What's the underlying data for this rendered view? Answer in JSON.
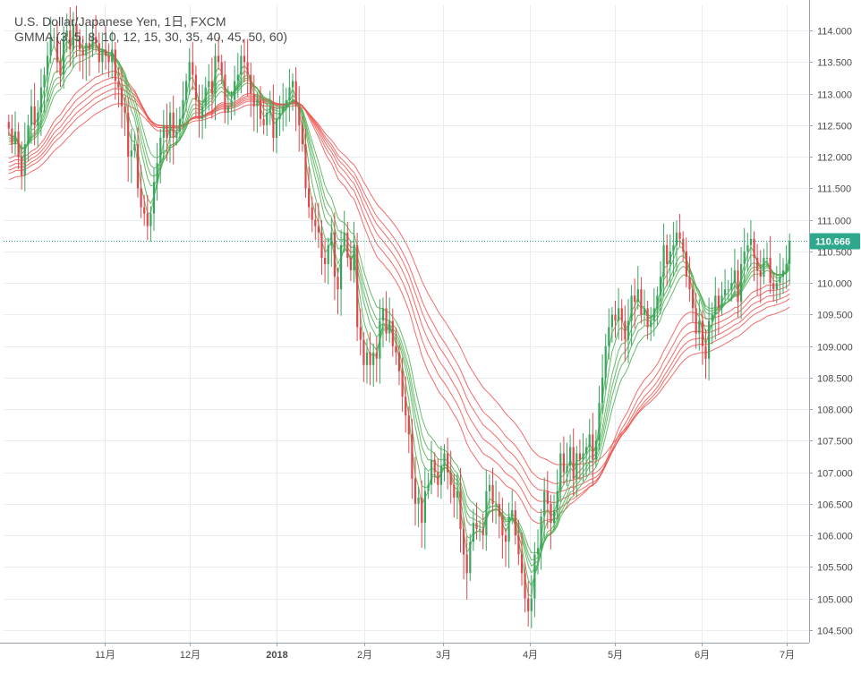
{
  "header": {
    "title": "U.S. Dollar/Japanese Yen, 1日, FXCM",
    "indicator": "GMMA (3, 5, 8, 10, 12, 15, 30, 35, 40, 45, 50, 60)"
  },
  "colors": {
    "up": "#3ba560",
    "down": "#e0474c",
    "short_ma": "#4caf50",
    "long_ma": "#ef5350",
    "grid": "#e9edf2",
    "axis": "#4a4a4a",
    "price_line": "#2a9d8f",
    "price_badge": "#2ea88c"
  },
  "chart_data": {
    "type": "candlestick",
    "title": "U.S. Dollar/Japanese Yen, 1日, FXCM",
    "indicator": "GMMA (3, 5, 8, 10, 12, 15, 30, 35, 40, 45, 50, 60)",
    "ylim": [
      104.3,
      114.4
    ],
    "y_ticks": [
      "104.500",
      "105.000",
      "105.500",
      "106.000",
      "106.500",
      "107.000",
      "107.500",
      "108.000",
      "108.500",
      "109.000",
      "109.500",
      "110.000",
      "110.500",
      "111.000",
      "111.500",
      "112.000",
      "112.500",
      "113.000",
      "113.500",
      "114.000"
    ],
    "x_ticks": [
      "11月",
      "12月",
      "2018",
      "2月",
      "3月",
      "4月",
      "5月",
      "6月",
      "7月"
    ],
    "last_price": "110.666",
    "grid": true,
    "x_range": [
      "2017-09-26",
      "2018-07-02"
    ],
    "closes": [
      112.45,
      112.2,
      112.4,
      112.0,
      111.7,
      112.2,
      112.5,
      112.8,
      112.5,
      112.7,
      113.1,
      113.3,
      113.6,
      113.9,
      113.9,
      113.5,
      113.3,
      113.9,
      114.0,
      113.7,
      114.1,
      113.9,
      113.7,
      113.6,
      113.8,
      113.7,
      113.9,
      113.8,
      113.5,
      113.7,
      113.6,
      113.5,
      113.7,
      113.2,
      113.1,
      112.8,
      112.7,
      112.0,
      112.1,
      112.2,
      111.5,
      111.2,
      111.1,
      110.9,
      111.1,
      111.6,
      111.9,
      112.3,
      112.5,
      112.3,
      112.7,
      112.3,
      112.4,
      112.6,
      112.9,
      113.2,
      113.5,
      113.3,
      112.9,
      112.6,
      112.8,
      113.1,
      113.2,
      113.0,
      113.6,
      113.5,
      113.3,
      112.7,
      112.8,
      112.9,
      113.2,
      113.3,
      113.6,
      113.5,
      113.3,
      113.0,
      112.8,
      112.9,
      112.6,
      112.5,
      112.7,
      112.8,
      112.3,
      112.6,
      112.7,
      112.8,
      112.9,
      113.1,
      113.2,
      112.8,
      112.5,
      112.2,
      111.5,
      111.2,
      111.0,
      110.9,
      110.8,
      110.4,
      110.3,
      110.6,
      110.8,
      110.1,
      109.9,
      110.6,
      110.8,
      110.4,
      110.2,
      110.6,
      109.3,
      109.1,
      108.7,
      108.9,
      108.7,
      108.9,
      108.8,
      109.4,
      109.6,
      109.2,
      109.4,
      109.0,
      108.9,
      108.6,
      108.2,
      107.9,
      107.6,
      106.9,
      106.5,
      106.6,
      106.2,
      106.7,
      106.8,
      107.2,
      107.0,
      106.8,
      107.1,
      107.3,
      107.0,
      106.8,
      106.6,
      106.7,
      106.1,
      105.7,
      105.4,
      105.9,
      106.2,
      106.1,
      106.1,
      106.0,
      106.7,
      106.8,
      106.5,
      106.5,
      106.3,
      106.0,
      105.9,
      106.3,
      106.4,
      106.0,
      105.7,
      105.4,
      105.0,
      104.8,
      105.0,
      105.7,
      105.8,
      106.3,
      106.7,
      106.5,
      106.2,
      106.4,
      106.7,
      107.3,
      107.0,
      107.1,
      107.4,
      106.9,
      107.3,
      107.2,
      107.3,
      107.4,
      107.6,
      107.2,
      107.5,
      108.1,
      108.5,
      109.0,
      109.3,
      109.5,
      109.4,
      109.6,
      109.4,
      109.1,
      109.4,
      109.8,
      109.7,
      109.9,
      109.5,
      109.6,
      109.3,
      109.4,
      109.6,
      109.8,
      110.1,
      110.6,
      110.3,
      110.5,
      110.6,
      110.8,
      110.7,
      110.5,
      110.1,
      109.9,
      109.6,
      109.2,
      109.4,
      109.0,
      108.8,
      109.4,
      109.5,
      109.8,
      109.6,
      109.8,
      109.9,
      109.9,
      110.0,
      110.2,
      109.7,
      110.3,
      110.5,
      110.6,
      110.7,
      110.4,
      110.2,
      110.1,
      110.4,
      110.4,
      110.0,
      109.9,
      110.0,
      110.1,
      110.2,
      110.3,
      110.666
    ]
  }
}
